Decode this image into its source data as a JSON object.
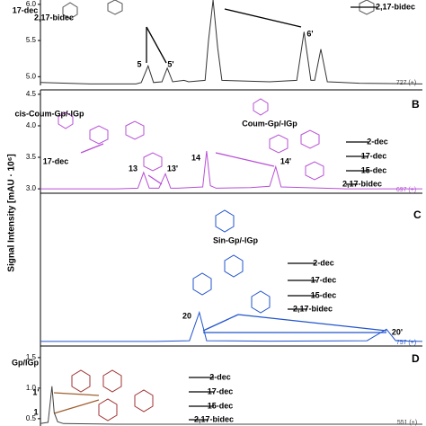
{
  "y_axis_label": "Signal Intensity [mAU · 10⁶]",
  "chart_data": [
    {
      "type": "line",
      "ion_label": "727 (+)",
      "annotations": [
        "5",
        "5'",
        "6'",
        "17-dec",
        "2,17-bidec",
        "2,17-bidec"
      ],
      "xlim": [
        0,
        100
      ],
      "ylim": [
        4.88,
        6.06
      ],
      "yticks": [
        {
          "value": 5,
          "label": "5.0"
        },
        5.5,
        {
          "value": 6,
          "label": "6.0"
        }
      ],
      "x": [
        0,
        13,
        25,
        26.4,
        28.2,
        29.6,
        31.8,
        33.2,
        34.6,
        37.6,
        38.8,
        43.1,
        44,
        45.2,
        46.4,
        47.5,
        60,
        67.1,
        69,
        70.8,
        71.8,
        73.4,
        75.1,
        83.5,
        100
      ],
      "series": [
        {
          "color": "#333333",
          "values": [
            4.92,
            4.9,
            4.9,
            4.92,
            5.15,
            4.92,
            4.93,
            5.12,
            4.93,
            4.95,
            4.93,
            4.95,
            5.5,
            6.06,
            5.4,
            4.95,
            4.93,
            4.95,
            5.62,
            4.95,
            4.95,
            5.38,
            4.93,
            4.91,
            4.9
          ]
        }
      ]
    },
    {
      "type": "line",
      "panel_label": "B",
      "ion_label": "697 (+)",
      "annotations": [
        "cis-Coum-Gp/-lGp",
        "Coum-Gp/-lGp",
        "17-dec",
        "13",
        "13'",
        "14",
        "14'",
        "2-dec",
        "17-dec",
        "15-dec",
        "2,17-bidec"
      ],
      "xlim": [
        0,
        100
      ],
      "ylim": [
        2.93,
        4.57
      ],
      "yticks": [
        {
          "value": 3,
          "label": "3.0"
        },
        3.5,
        {
          "value": 4,
          "label": "4.0"
        },
        4.5
      ],
      "x": [
        0,
        20,
        25.5,
        27,
        28.5,
        31,
        32.7,
        34.1,
        36,
        42.5,
        43.5,
        44.5,
        46,
        55,
        60,
        61.6,
        63,
        80,
        100
      ],
      "series": [
        {
          "color": "#b84fd6",
          "values": [
            3,
            3,
            3.01,
            3.26,
            3.01,
            3.01,
            3.24,
            3.01,
            3.01,
            3.03,
            3.6,
            3.05,
            3.01,
            3.02,
            3.04,
            3.35,
            3.03,
            3,
            3
          ]
        }
      ]
    },
    {
      "type": "line",
      "panel_label": "C",
      "ion_label": "757 (+)",
      "annotations": [
        "Sin-Gp/-lGp",
        "2-dec",
        "17-dec",
        "15-dec",
        "2,17-bidec",
        "20",
        "20'"
      ],
      "xlim": [
        0,
        100
      ],
      "ylim": [
        0,
        10
      ],
      "x": [
        0,
        30,
        39,
        41.6,
        43.5,
        60,
        85.5,
        90.6,
        93,
        100
      ],
      "series": [
        {
          "color": "#2255cc",
          "values": [
            0.3,
            0.3,
            0.35,
            2.2,
            0.35,
            0.32,
            0.35,
            1.1,
            0.35,
            0.3
          ]
        }
      ]
    },
    {
      "type": "line",
      "panel_label": "D",
      "ion_label": "551 (+)",
      "annotations": [
        "Gp/lGp",
        "2-dec",
        "17-dec",
        "15-dec",
        "2,17-bidec",
        "1",
        "1'"
      ],
      "xlim": [
        0,
        100
      ],
      "ylim": [
        0.38,
        1.69
      ],
      "yticks": [
        0.5,
        {
          "value": 1,
          "label": "1.0"
        },
        1.5
      ],
      "x": [
        0,
        2,
        3,
        3.6,
        4.5,
        6,
        20,
        60,
        100
      ],
      "series": [
        {
          "color": "#444444",
          "values": [
            0.42,
            0.44,
            1.03,
            0.6,
            0.45,
            0.42,
            0.41,
            0.41,
            0.41
          ]
        }
      ]
    }
  ]
}
